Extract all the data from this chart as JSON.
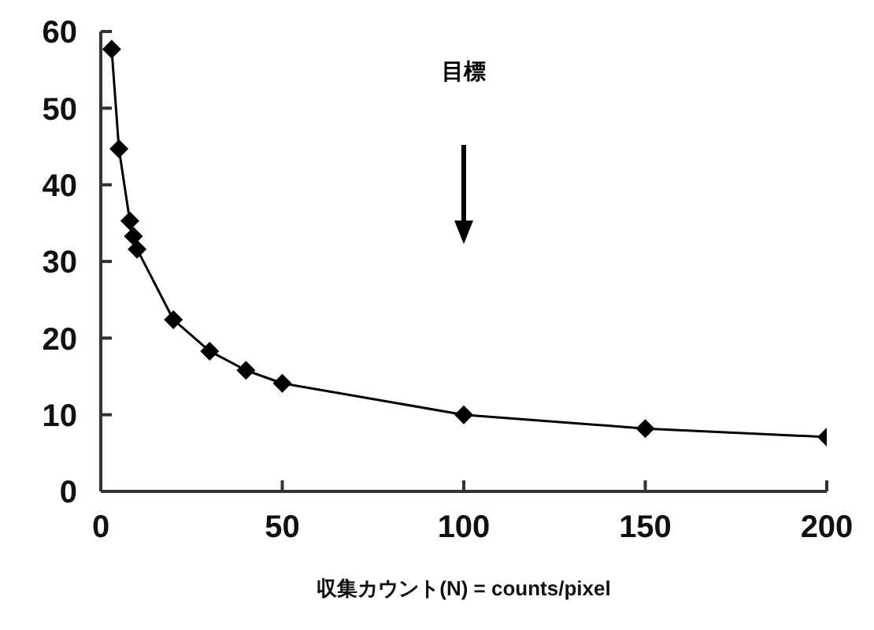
{
  "chart_data": {
    "type": "line",
    "xlabel": "収集カウント(N) = counts/pixel",
    "x": [
      3,
      5,
      8,
      9,
      10,
      20,
      30,
      40,
      50,
      100,
      150,
      200
    ],
    "series": [
      {
        "color": "#000000",
        "values": [
          57.7,
          44.7,
          35.3,
          33.3,
          31.6,
          22.4,
          18.3,
          15.8,
          14.1,
          10,
          8.2,
          7.1
        ]
      }
    ],
    "xlim": [
      0,
      200
    ],
    "xticks": [
      0,
      50,
      100,
      150,
      200
    ],
    "ylim": [
      0,
      60
    ],
    "yticks": [
      0,
      10,
      20,
      30,
      40,
      50,
      60
    ],
    "grid": false,
    "legend": false,
    "marker": "diamond",
    "line_style": "solid",
    "annotations": [
      "目標"
    ]
  }
}
